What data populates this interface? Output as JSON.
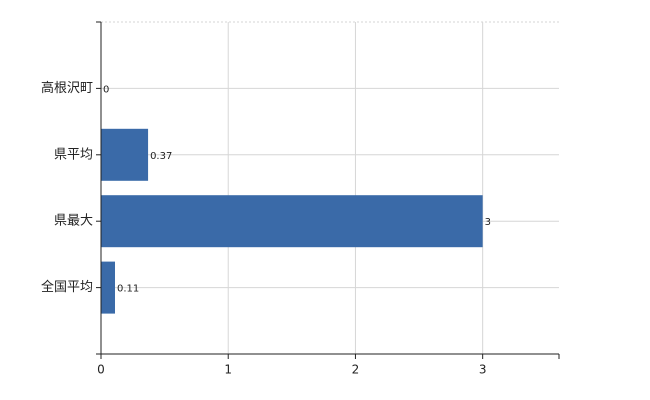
{
  "chart_data": {
    "type": "barh",
    "categories": [
      "高根沢町",
      "県平均",
      "県最大",
      "全国平均"
    ],
    "values": [
      0,
      0.37,
      3,
      0.11
    ],
    "color": "#3a6aa8",
    "xlim": [
      0,
      3.6
    ],
    "xticks": [
      0,
      1,
      2,
      3
    ],
    "grid": true
  }
}
